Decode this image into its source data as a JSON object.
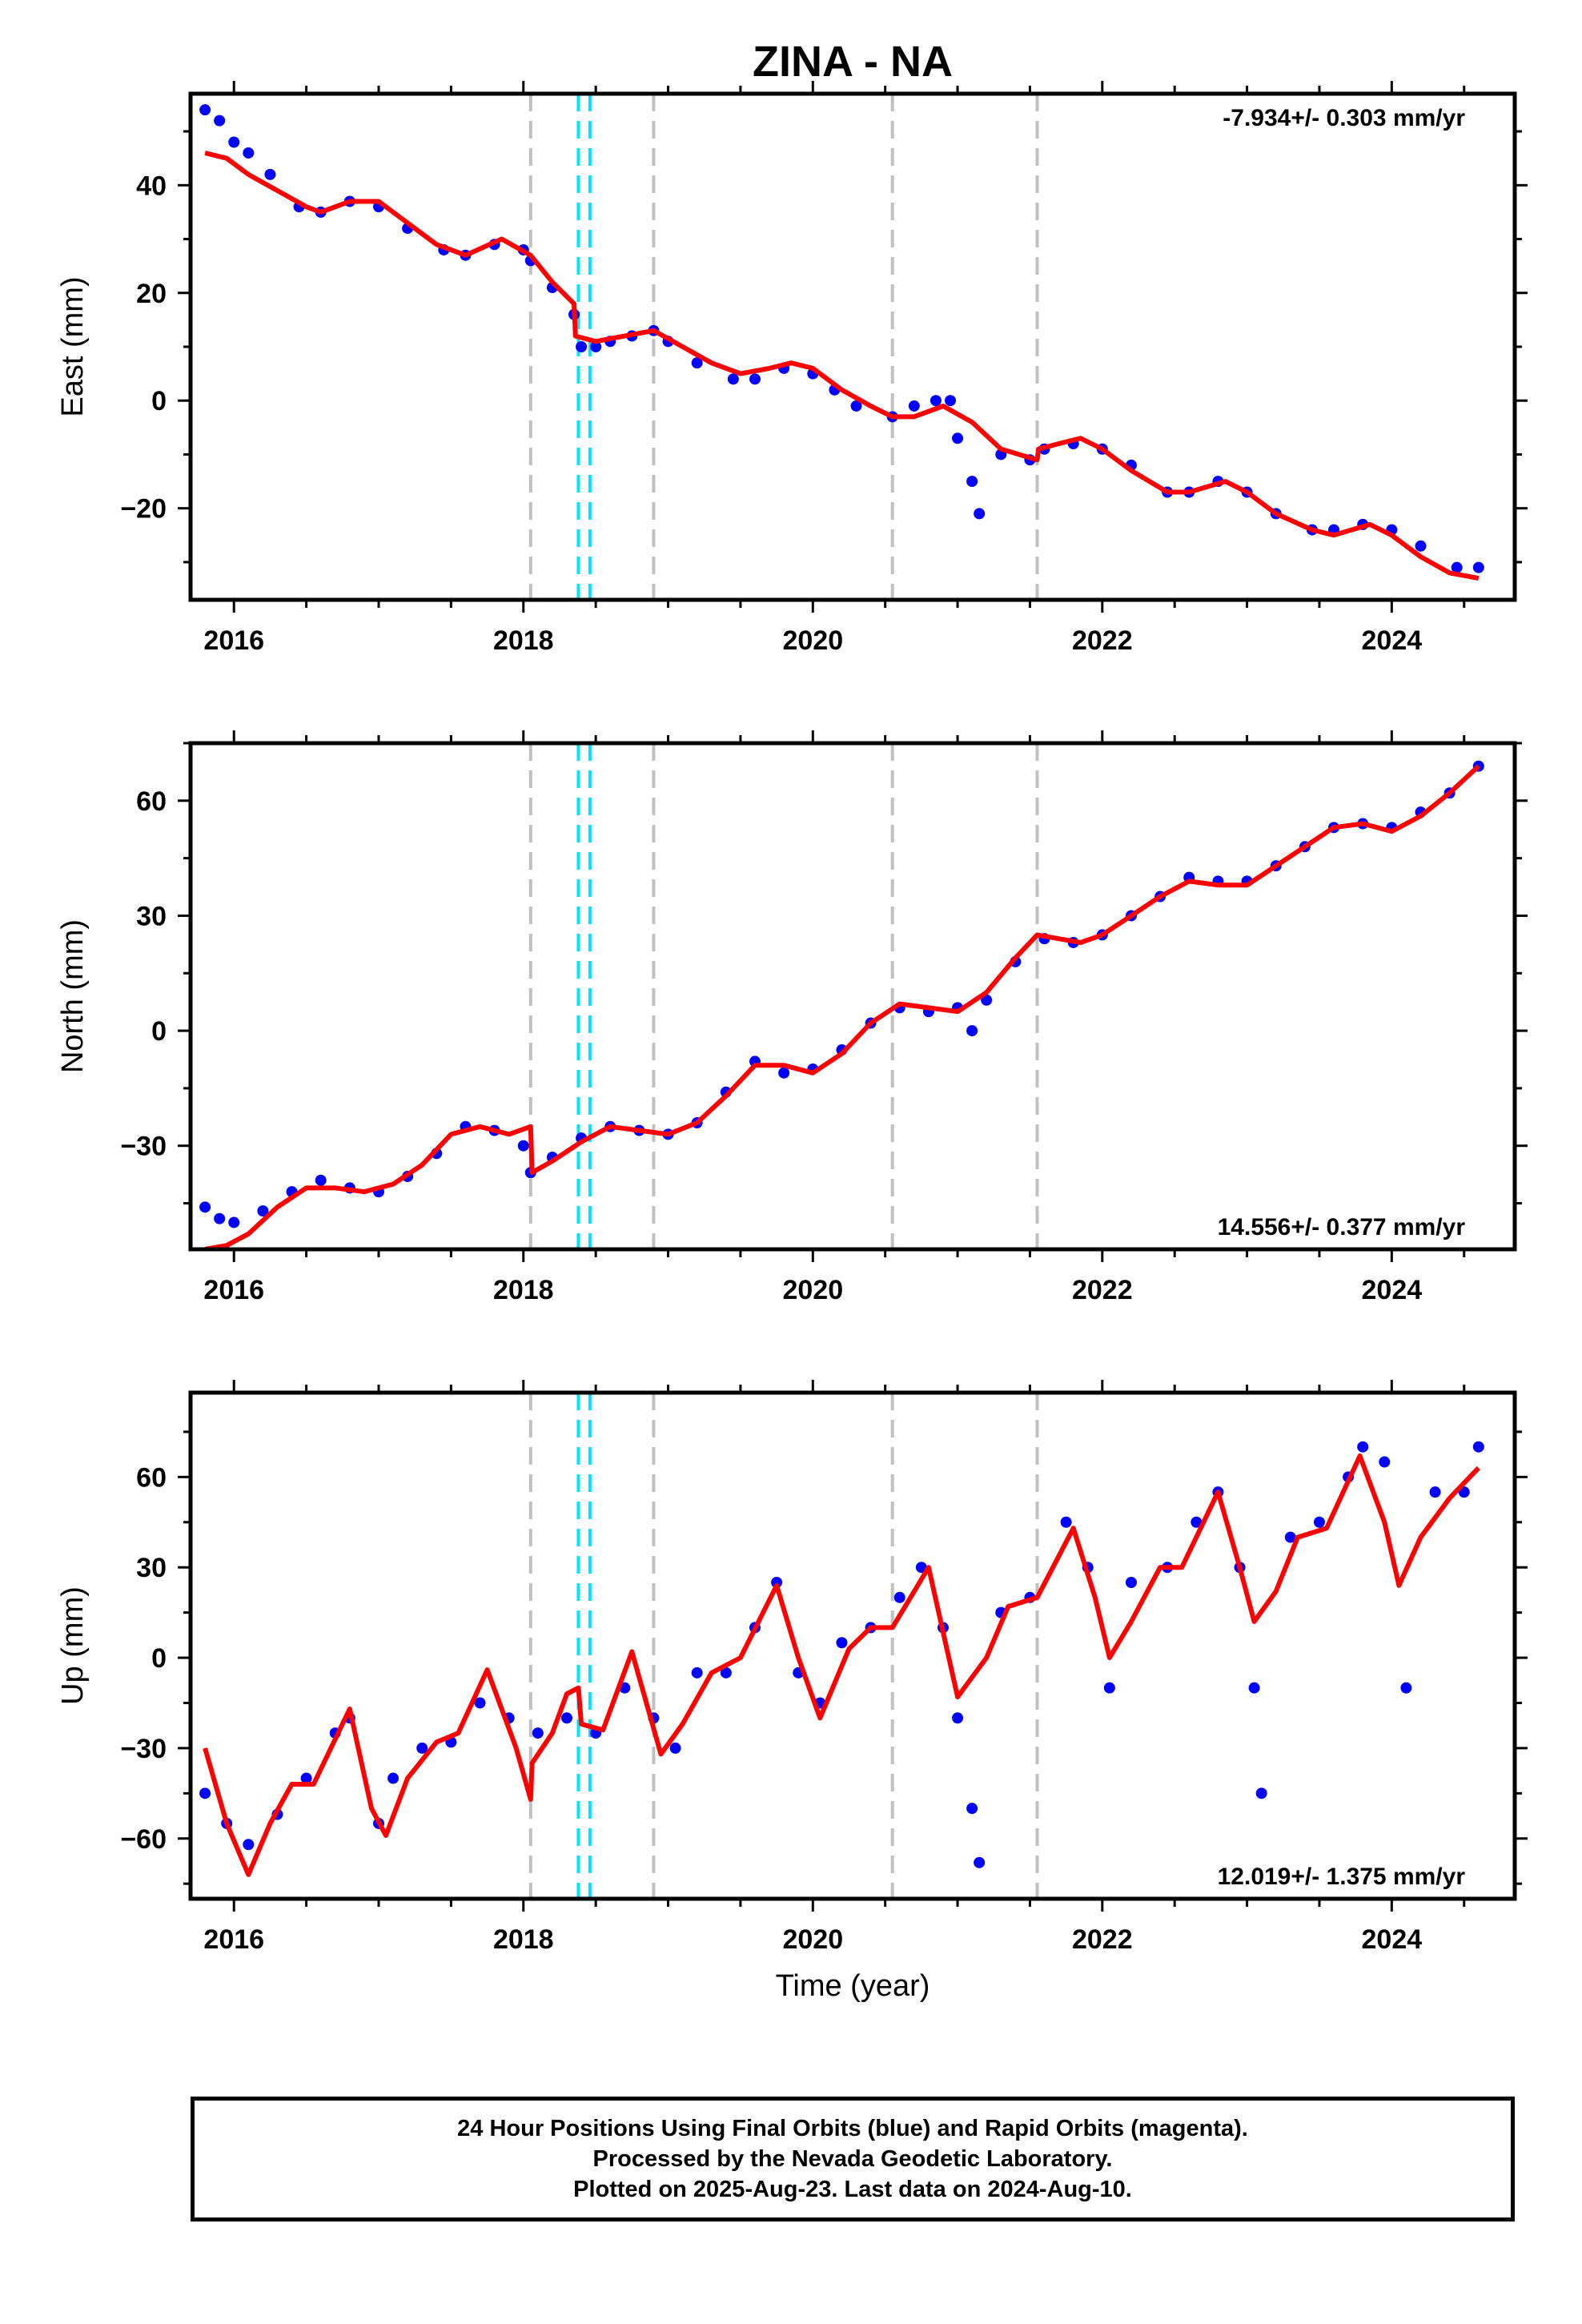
{
  "title": "ZINA - NA",
  "x_axis_label": "Time (year)",
  "footer": {
    "line1": "24 Hour Positions Using Final Orbits (blue) and Rapid Orbits (magenta).",
    "line2": "Processed by the Nevada Geodetic Laboratory.",
    "line3": "Plotted on 2025-Aug-23. Last data on 2024-Aug-10."
  },
  "colors": {
    "data_points": "#0000ff",
    "model_fit": "#ff0000",
    "equipment_change_lines": "#c0c0c0",
    "earthquake_lines": "#00e5ff",
    "frame": "#000000"
  },
  "chart_data": [
    {
      "type": "scatter",
      "component": "East",
      "ylabel": "East (mm)",
      "xlabel": "",
      "xlim": [
        2015.7,
        2024.85
      ],
      "ylim": [
        -37,
        57
      ],
      "xticks": [
        2016,
        2018,
        2020,
        2022,
        2024
      ],
      "yticks": [
        -20,
        0,
        20,
        40
      ],
      "rate_label": "-7.934+/- 0.303 mm/yr",
      "rate_position": "top-right",
      "gray_dashed_lines": [
        2018.05,
        2018.9,
        2020.55,
        2021.55
      ],
      "cyan_dashed_lines": [
        2018.38,
        2018.46
      ],
      "series": [
        {
          "name": "",
          "style": "points",
          "color": "#0000ff",
          "x": [
            2015.8,
            2015.9,
            2016.0,
            2016.1,
            2016.25,
            2016.45,
            2016.6,
            2016.8,
            2017.0,
            2017.2,
            2017.45,
            2017.6,
            2017.8,
            2018.0,
            2018.05,
            2018.2,
            2018.35,
            2018.4,
            2018.5,
            2018.6,
            2018.75,
            2018.9,
            2019.0,
            2019.2,
            2019.45,
            2019.6,
            2019.8,
            2020.0,
            2020.15,
            2020.3,
            2020.55,
            2020.7,
            2020.85,
            2020.95,
            2021.0,
            2021.1,
            2021.15,
            2021.3,
            2021.5,
            2021.6,
            2021.8,
            2022.0,
            2022.2,
            2022.45,
            2022.6,
            2022.8,
            2023.0,
            2023.2,
            2023.45,
            2023.6,
            2023.8,
            2024.0,
            2024.2,
            2024.45,
            2024.6
          ],
          "y": [
            54,
            52,
            48,
            46,
            42,
            36,
            35,
            37,
            36,
            32,
            28,
            27,
            29,
            28,
            26,
            21,
            16,
            10,
            10,
            11,
            12,
            13,
            11,
            7,
            4,
            4,
            6,
            5,
            2,
            -1,
            -3,
            -1,
            0,
            0,
            -7,
            -15,
            -21,
            -10,
            -11,
            -9,
            -8,
            -9,
            -12,
            -17,
            -17,
            -15,
            -17,
            -21,
            -24,
            -24,
            -23,
            -24,
            -27,
            -31,
            -31
          ]
        },
        {
          "name": "",
          "style": "line",
          "color": "#ff0000",
          "x": [
            2015.8,
            2015.95,
            2016.1,
            2016.3,
            2016.5,
            2016.6,
            2016.8,
            2017.0,
            2017.2,
            2017.4,
            2017.6,
            2017.85,
            2018.05,
            2018.2,
            2018.35,
            2018.36,
            2018.5,
            2018.7,
            2018.9,
            2019.1,
            2019.3,
            2019.5,
            2019.7,
            2019.85,
            2020.0,
            2020.2,
            2020.4,
            2020.55,
            2020.7,
            2020.9,
            2021.1,
            2021.3,
            2021.55,
            2021.56,
            2021.7,
            2021.85,
            2022.0,
            2022.2,
            2022.45,
            2022.6,
            2022.85,
            2023.0,
            2023.2,
            2023.45,
            2023.6,
            2023.85,
            2024.0,
            2024.2,
            2024.4,
            2024.6
          ],
          "y": [
            46,
            45,
            42,
            39,
            36,
            35,
            37,
            37,
            33,
            29,
            27,
            30,
            27,
            22,
            18,
            12,
            11,
            12,
            13,
            10,
            7,
            5,
            6,
            7,
            6,
            2,
            -1,
            -3,
            -3,
            -1,
            -4,
            -9,
            -11,
            -9,
            -8,
            -7,
            -9,
            -13,
            -17,
            -17,
            -15,
            -17,
            -21,
            -24,
            -25,
            -23,
            -25,
            -29,
            -32,
            -33
          ]
        }
      ]
    },
    {
      "type": "scatter",
      "component": "North",
      "ylabel": "North (mm)",
      "xlabel": "",
      "xlim": [
        2015.7,
        2024.85
      ],
      "ylim": [
        -57,
        75
      ],
      "xticks": [
        2016,
        2018,
        2020,
        2022,
        2024
      ],
      "yticks": [
        -30,
        0,
        30,
        60
      ],
      "rate_label": "14.556+/- 0.377 mm/yr",
      "rate_position": "bottom-right",
      "gray_dashed_lines": [
        2018.05,
        2018.9,
        2020.55,
        2021.55
      ],
      "cyan_dashed_lines": [
        2018.38,
        2018.46
      ],
      "series": [
        {
          "name": "",
          "style": "points",
          "color": "#0000ff",
          "x": [
            2015.8,
            2015.9,
            2016.0,
            2016.2,
            2016.4,
            2016.6,
            2016.8,
            2017.0,
            2017.2,
            2017.4,
            2017.6,
            2017.8,
            2018.0,
            2018.05,
            2018.2,
            2018.4,
            2018.6,
            2018.8,
            2019.0,
            2019.2,
            2019.4,
            2019.6,
            2019.8,
            2020.0,
            2020.2,
            2020.4,
            2020.6,
            2020.8,
            2021.0,
            2021.1,
            2021.2,
            2021.4,
            2021.6,
            2021.8,
            2022.0,
            2022.2,
            2022.4,
            2022.6,
            2022.8,
            2023.0,
            2023.2,
            2023.4,
            2023.6,
            2023.8,
            2024.0,
            2024.2,
            2024.4,
            2024.6
          ],
          "y": [
            -46,
            -49,
            -50,
            -47,
            -42,
            -39,
            -41,
            -42,
            -38,
            -32,
            -25,
            -26,
            -30,
            -37,
            -33,
            -28,
            -25,
            -26,
            -27,
            -24,
            -16,
            -8,
            -11,
            -10,
            -5,
            2,
            6,
            5,
            6,
            0,
            8,
            18,
            24,
            23,
            25,
            30,
            35,
            40,
            39,
            39,
            43,
            48,
            53,
            54,
            53,
            57,
            62,
            69
          ]
        },
        {
          "name": "",
          "style": "line",
          "color": "#ff0000",
          "x": [
            2015.8,
            2015.95,
            2016.1,
            2016.3,
            2016.5,
            2016.7,
            2016.9,
            2017.1,
            2017.3,
            2017.5,
            2017.7,
            2017.9,
            2018.05,
            2018.06,
            2018.2,
            2018.4,
            2018.6,
            2018.8,
            2019.0,
            2019.2,
            2019.4,
            2019.6,
            2019.8,
            2020.0,
            2020.2,
            2020.4,
            2020.6,
            2020.8,
            2021.0,
            2021.2,
            2021.4,
            2021.55,
            2021.7,
            2021.85,
            2022.0,
            2022.2,
            2022.4,
            2022.6,
            2022.8,
            2023.0,
            2023.2,
            2023.4,
            2023.6,
            2023.8,
            2024.0,
            2024.2,
            2024.4,
            2024.6
          ],
          "y": [
            -57,
            -56,
            -53,
            -46,
            -41,
            -41,
            -42,
            -40,
            -35,
            -27,
            -25,
            -27,
            -25,
            -37,
            -34,
            -29,
            -25,
            -26,
            -27,
            -24,
            -17,
            -9,
            -9,
            -11,
            -6,
            2,
            7,
            6,
            5,
            10,
            19,
            25,
            24,
            23,
            25,
            30,
            35,
            39,
            38,
            38,
            43,
            48,
            53,
            54,
            52,
            56,
            62,
            69
          ]
        }
      ]
    },
    {
      "type": "scatter",
      "component": "Up",
      "ylabel": "Up (mm)",
      "xlabel": "Time (year)",
      "xlim": [
        2015.7,
        2024.85
      ],
      "ylim": [
        -80,
        88
      ],
      "xticks": [
        2016,
        2018,
        2020,
        2022,
        2024
      ],
      "yticks": [
        -60,
        -30,
        0,
        30,
        60
      ],
      "rate_label": "12.019+/- 1.375 mm/yr",
      "rate_position": "bottom-right",
      "gray_dashed_lines": [
        2018.05,
        2018.9,
        2020.55,
        2021.55
      ],
      "cyan_dashed_lines": [
        2018.38,
        2018.46
      ],
      "series": [
        {
          "name": "",
          "style": "points",
          "color": "#0000ff",
          "x": [
            2015.8,
            2015.95,
            2016.1,
            2016.3,
            2016.5,
            2016.7,
            2016.8,
            2017.0,
            2017.1,
            2017.3,
            2017.5,
            2017.7,
            2017.9,
            2018.1,
            2018.3,
            2018.5,
            2018.7,
            2018.9,
            2019.05,
            2019.2,
            2019.4,
            2019.6,
            2019.75,
            2019.9,
            2020.05,
            2020.2,
            2020.4,
            2020.6,
            2020.75,
            2020.9,
            2021.0,
            2021.1,
            2021.15,
            2021.3,
            2021.5,
            2021.75,
            2021.9,
            2022.05,
            2022.2,
            2022.45,
            2022.65,
            2022.8,
            2022.95,
            2023.05,
            2023.1,
            2023.3,
            2023.5,
            2023.7,
            2023.8,
            2023.95,
            2024.1,
            2024.3,
            2024.5,
            2024.6
          ],
          "y": [
            -45,
            -55,
            -62,
            -52,
            -40,
            -25,
            -20,
            -55,
            -40,
            -30,
            -28,
            -15,
            -20,
            -25,
            -20,
            -25,
            -10,
            -20,
            -30,
            -5,
            -5,
            10,
            25,
            -5,
            -15,
            5,
            10,
            20,
            30,
            10,
            -20,
            -50,
            -68,
            15,
            20,
            45,
            30,
            -10,
            25,
            30,
            45,
            55,
            30,
            -10,
            -45,
            40,
            45,
            60,
            70,
            65,
            -10,
            55,
            55,
            70
          ]
        },
        {
          "name": "",
          "style": "line",
          "color": "#ff0000",
          "x": [
            2015.8,
            2015.95,
            2016.1,
            2016.25,
            2016.4,
            2016.55,
            2016.8,
            2016.95,
            2017.05,
            2017.2,
            2017.4,
            2017.55,
            2017.75,
            2017.95,
            2018.05,
            2018.06,
            2018.2,
            2018.3,
            2018.38,
            2018.4,
            2018.55,
            2018.75,
            2018.95,
            2019.1,
            2019.3,
            2019.5,
            2019.75,
            2019.9,
            2020.05,
            2020.25,
            2020.4,
            2020.55,
            2020.8,
            2021.0,
            2021.2,
            2021.35,
            2021.55,
            2021.8,
            2021.95,
            2022.05,
            2022.2,
            2022.4,
            2022.55,
            2022.8,
            2022.95,
            2023.05,
            2023.2,
            2023.35,
            2023.55,
            2023.78,
            2023.95,
            2024.05,
            2024.2,
            2024.4,
            2024.6
          ],
          "y": [
            -30,
            -55,
            -72,
            -55,
            -42,
            -42,
            -17,
            -50,
            -59,
            -40,
            -28,
            -25,
            -4,
            -30,
            -47,
            -35,
            -25,
            -12,
            -10,
            -22,
            -24,
            2,
            -32,
            -22,
            -5,
            0,
            24,
            0,
            -20,
            3,
            10,
            10,
            30,
            -13,
            0,
            17,
            20,
            43,
            20,
            0,
            12,
            30,
            30,
            55,
            30,
            12,
            22,
            40,
            43,
            67,
            45,
            24,
            40,
            53,
            63
          ]
        }
      ]
    }
  ]
}
